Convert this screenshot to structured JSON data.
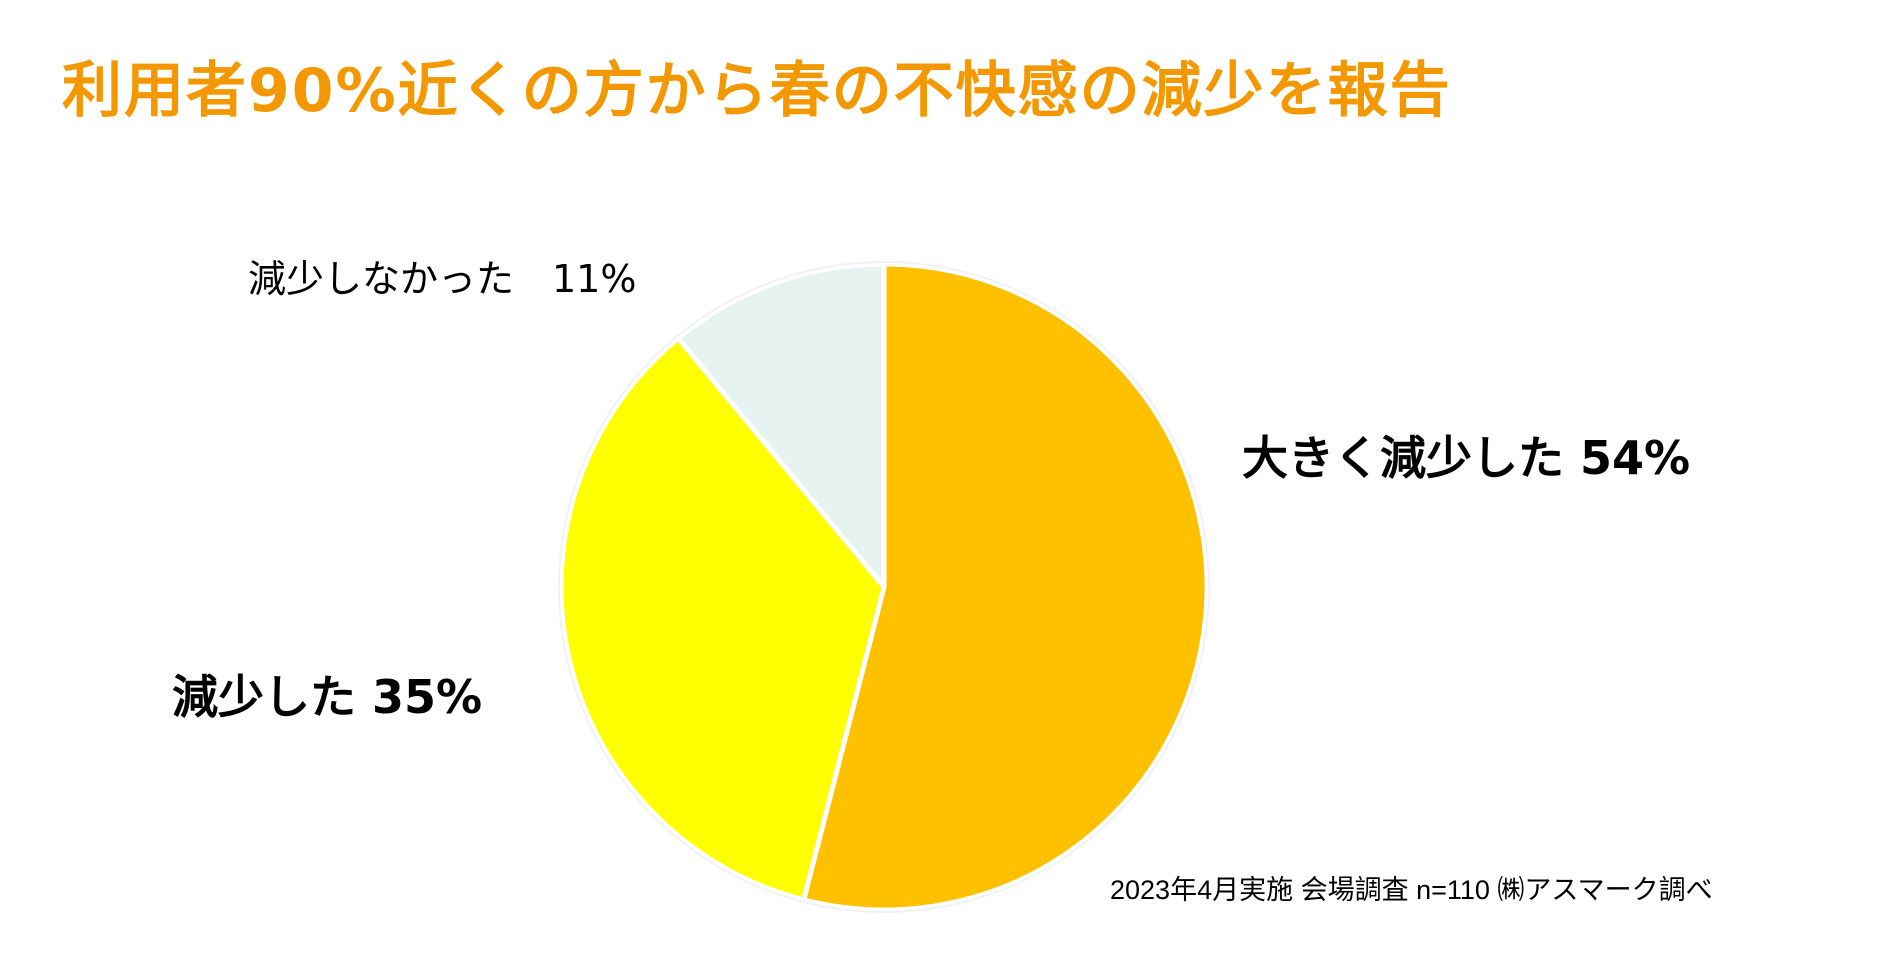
{
  "title": "利用者90%近くの方から春の不快感の減少を報告",
  "footnote": "2023年4月実施 会場調査 n=110 ㈱アスマーク調べ",
  "chart_data": {
    "type": "pie",
    "title": "利用者90%近くの方から春の不快感の減少を報告",
    "start": "12 o'clock, clockwise",
    "slices": [
      {
        "label": "大きく減少した",
        "value": 54,
        "display": "大きく減少した 54%",
        "color": "#ffc000"
      },
      {
        "label": "減少した",
        "value": 35,
        "display": "減少した 35%",
        "color": "#ffff00"
      },
      {
        "label": "減少しなかった",
        "value": 11,
        "display": "減少しなかった　11%",
        "color": "#e7f3f1"
      }
    ]
  }
}
